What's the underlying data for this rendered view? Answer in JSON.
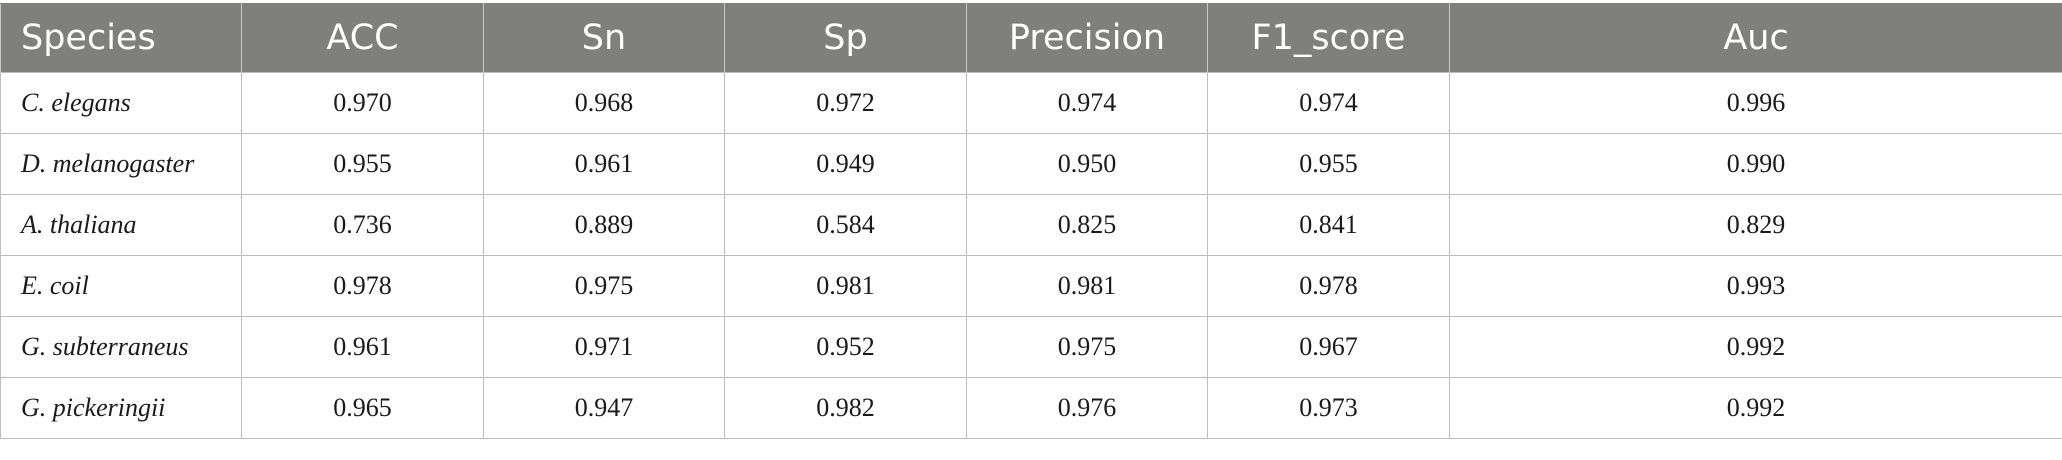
{
  "table": {
    "headers": [
      "Species",
      "ACC",
      "Sn",
      "Sp",
      "Precision",
      "F1_score",
      "Auc"
    ],
    "rows": [
      [
        "C. elegans",
        "0.970",
        "0.968",
        "0.972",
        "0.974",
        "0.974",
        "0.996"
      ],
      [
        "D. melanogaster",
        "0.955",
        "0.961",
        "0.949",
        "0.950",
        "0.955",
        "0.990"
      ],
      [
        "A. thaliana",
        "0.736",
        "0.889",
        "0.584",
        "0.825",
        "0.841",
        "0.829"
      ],
      [
        "E. coil",
        "0.978",
        "0.975",
        "0.981",
        "0.981",
        "0.978",
        "0.993"
      ],
      [
        "G. subterraneus",
        "0.961",
        "0.971",
        "0.952",
        "0.975",
        "0.967",
        "0.992"
      ],
      [
        "G. pickeringii",
        "0.965",
        "0.947",
        "0.982",
        "0.976",
        "0.973",
        "0.992"
      ]
    ]
  },
  "colors": {
    "header_background": "#7f7f7e",
    "header_text": "#ffffff",
    "grid_lines": "#bdbdbd"
  }
}
